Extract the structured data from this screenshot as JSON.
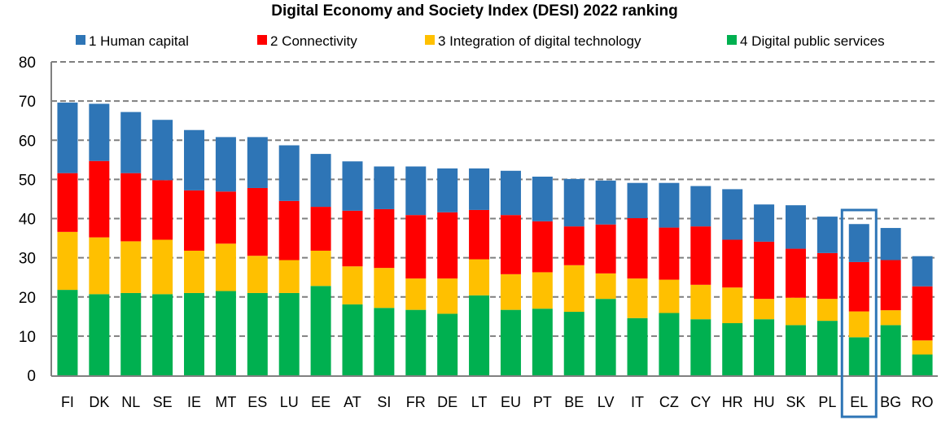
{
  "chart_data": {
    "type": "bar",
    "stacked": true,
    "title": "Digital Economy and Society Index (DESI) 2022 ranking",
    "xlabel": "",
    "ylabel": "",
    "ylim": [
      0,
      80
    ],
    "yticks": [
      "0",
      "10",
      "20",
      "30",
      "40",
      "50",
      "60",
      "70",
      "80"
    ],
    "grid": true,
    "legend_position": "top",
    "categories": [
      "FI",
      "DK",
      "NL",
      "SE",
      "IE",
      "MT",
      "ES",
      "LU",
      "EE",
      "AT",
      "SI",
      "FR",
      "DE",
      "LT",
      "EU",
      "PT",
      "BE",
      "LV",
      "IT",
      "CZ",
      "CY",
      "HR",
      "HU",
      "SK",
      "PL",
      "EL",
      "BG",
      "RO"
    ],
    "highlighted_category": "EL",
    "series": [
      {
        "name": "4 Digital public services",
        "color": "#00b050",
        "values": [
          21.8,
          20.7,
          21.0,
          20.7,
          21.0,
          21.5,
          21.0,
          21.0,
          22.8,
          18.1,
          17.2,
          16.7,
          15.7,
          20.4,
          16.7,
          17.0,
          16.2,
          19.5,
          14.6,
          15.9,
          14.3,
          13.3,
          14.3,
          12.8,
          13.9,
          9.7,
          12.8,
          5.3
        ]
      },
      {
        "name": "3 Integration of digital technology",
        "color": "#ffc000",
        "values": [
          14.8,
          14.5,
          13.2,
          13.9,
          10.8,
          12.1,
          9.5,
          8.4,
          9.0,
          9.7,
          10.2,
          8.0,
          9.0,
          9.2,
          9.1,
          9.3,
          11.9,
          6.5,
          10.1,
          8.5,
          8.8,
          9.1,
          5.2,
          7.0,
          5.6,
          6.6,
          3.8,
          3.6
        ]
      },
      {
        "name": "2 Connectivity",
        "color": "#ff0000",
        "values": [
          15.0,
          19.5,
          17.4,
          15.2,
          15.4,
          13.3,
          17.3,
          15.1,
          11.2,
          14.2,
          15.0,
          16.2,
          16.9,
          12.6,
          15.1,
          13.0,
          9.9,
          12.5,
          15.4,
          13.3,
          14.9,
          12.2,
          14.6,
          12.5,
          11.7,
          12.6,
          12.8,
          13.8
        ]
      },
      {
        "name": "1 Human capital",
        "color": "#2e75b6",
        "values": [
          18.0,
          14.6,
          15.6,
          15.4,
          15.4,
          13.9,
          13.0,
          14.2,
          13.5,
          12.6,
          10.9,
          12.4,
          11.2,
          10.6,
          11.3,
          11.4,
          12.1,
          11.2,
          9.0,
          11.4,
          10.3,
          12.9,
          9.5,
          11.1,
          9.3,
          9.7,
          8.2,
          7.7
        ]
      }
    ],
    "legend_order": [
      "1 Human capital",
      "2 Connectivity",
      "3 Integration of digital technology",
      "4 Digital public services"
    ]
  }
}
